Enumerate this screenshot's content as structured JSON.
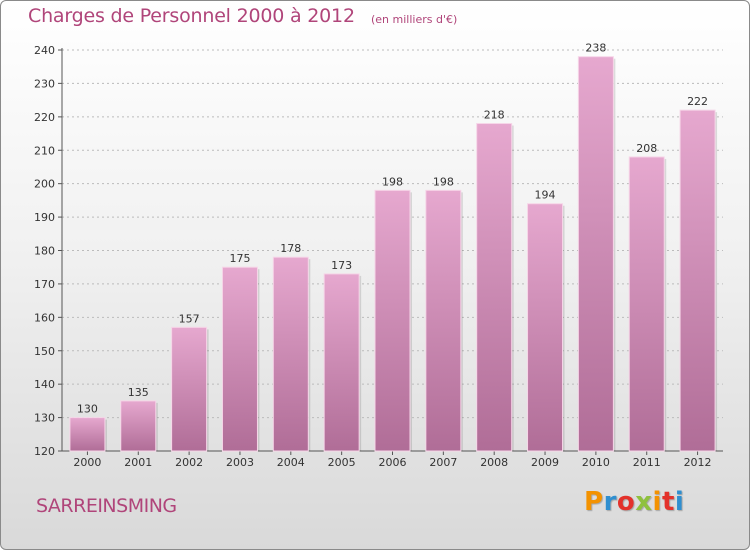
{
  "title": "Charges de Personnel 2000 à 2012",
  "subtitle": "(en milliers d'€)",
  "commune": "SARREINSMING",
  "brand": {
    "letters": [
      "P",
      "r",
      "o",
      "x",
      "i",
      "t",
      "i"
    ],
    "colors": [
      "#f39200",
      "#2f8fd0",
      "#e3322b",
      "#8fc13e",
      "#f39200",
      "#e3322b",
      "#2f8fd0"
    ]
  },
  "colors": {
    "bar_top": "#e6a8cf",
    "bar_bottom": "#b06d97",
    "title": "#b0457a",
    "grid": "#bbbbbb"
  },
  "chart_data": {
    "type": "bar",
    "categories": [
      "2000",
      "2001",
      "2002",
      "2003",
      "2004",
      "2005",
      "2006",
      "2007",
      "2008",
      "2009",
      "2010",
      "2011",
      "2012"
    ],
    "values": [
      130,
      135,
      157,
      175,
      178,
      173,
      198,
      198,
      218,
      194,
      238,
      208,
      222
    ],
    "title": "Charges de Personnel 2000 à 2012",
    "subtitle": "(en milliers d'€)",
    "xlabel": "",
    "ylabel": "",
    "ylim": [
      120,
      240
    ],
    "yticks": [
      120,
      130,
      140,
      150,
      160,
      170,
      180,
      190,
      200,
      210,
      220,
      230,
      240
    ],
    "grid": true,
    "legend": "none"
  }
}
